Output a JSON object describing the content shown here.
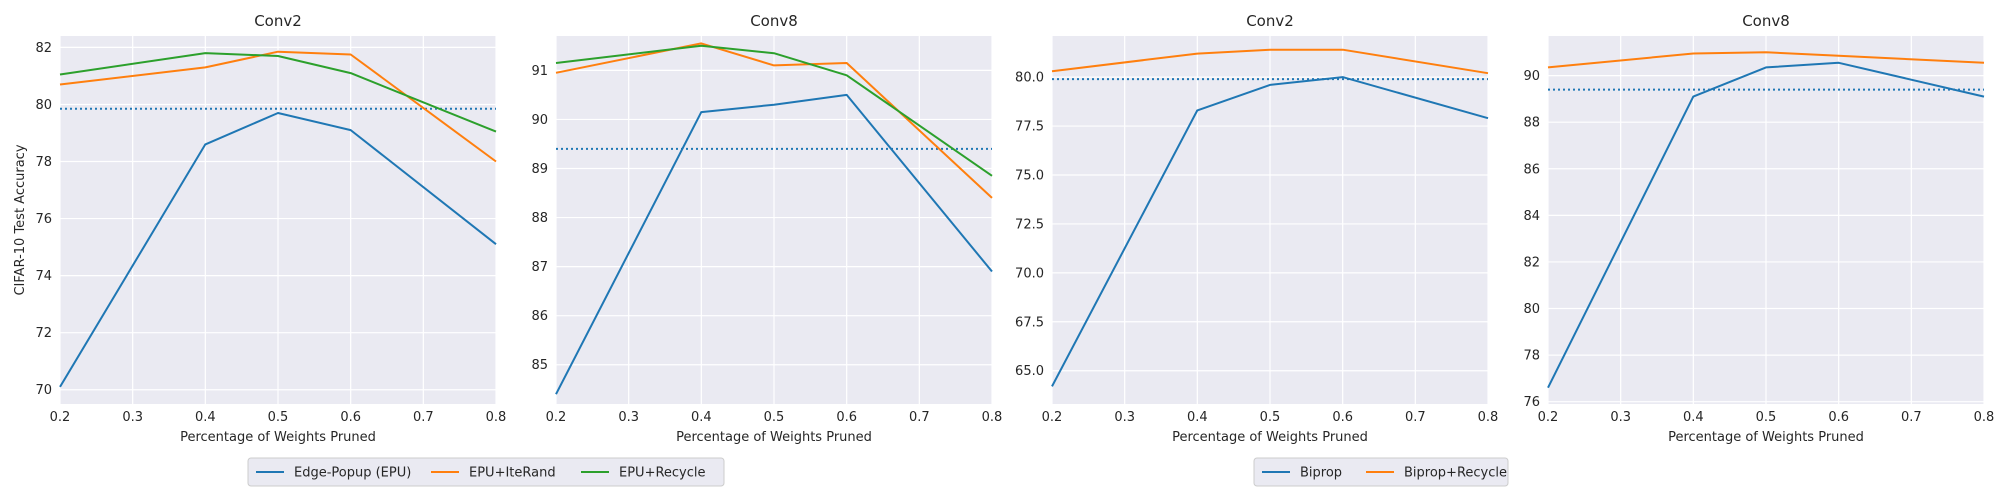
{
  "chart_data": [
    {
      "type": "line",
      "title": "Conv2",
      "xlabel": "Percentage of Weights Pruned",
      "ylabel": "CIFAR-10 Test Accuracy",
      "xlim": [
        0.2,
        0.8
      ],
      "ylim": [
        69.5,
        82.4
      ],
      "xticks": [
        "0.2",
        "0.3",
        "0.4",
        "0.5",
        "0.6",
        "0.7",
        "0.8"
      ],
      "yticks": [
        "70",
        "72",
        "74",
        "76",
        "78",
        "80",
        "82"
      ],
      "x": [
        0.2,
        0.4,
        0.5,
        0.6,
        0.8
      ],
      "series": [
        {
          "name": "Edge-Popup (EPU)",
          "values": [
            70.1,
            78.6,
            79.7,
            79.1,
            75.1
          ]
        },
        {
          "name": "EPU+IteRand",
          "values": [
            80.7,
            81.3,
            81.85,
            81.75,
            78.0
          ]
        },
        {
          "name": "EPU+Recycle",
          "values": [
            81.05,
            81.8,
            81.7,
            81.1,
            79.05
          ]
        }
      ],
      "baseline": 79.85,
      "grid": true
    },
    {
      "type": "line",
      "title": "Conv8",
      "xlabel": "Percentage of Weights Pruned",
      "ylabel": "",
      "xlim": [
        0.2,
        0.8
      ],
      "ylim": [
        84.2,
        91.7
      ],
      "xticks": [
        "0.2",
        "0.3",
        "0.4",
        "0.5",
        "0.6",
        "0.7",
        "0.8"
      ],
      "yticks": [
        "85",
        "86",
        "87",
        "88",
        "89",
        "90",
        "91"
      ],
      "x": [
        0.2,
        0.4,
        0.5,
        0.6,
        0.8
      ],
      "series": [
        {
          "name": "Edge-Popup (EPU)",
          "values": [
            84.4,
            90.15,
            90.3,
            90.5,
            86.9
          ]
        },
        {
          "name": "EPU+IteRand",
          "values": [
            90.95,
            91.55,
            91.1,
            91.15,
            88.4
          ]
        },
        {
          "name": "EPU+Recycle",
          "values": [
            91.15,
            91.5,
            91.35,
            90.9,
            88.85
          ]
        }
      ],
      "baseline": 89.4,
      "grid": true
    },
    {
      "type": "line",
      "title": "Conv2",
      "xlabel": "Percentage of Weights Pruned",
      "ylabel": "",
      "xlim": [
        0.2,
        0.8
      ],
      "ylim": [
        63.3,
        82.1
      ],
      "xticks": [
        "0.2",
        "0.3",
        "0.4",
        "0.5",
        "0.6",
        "0.7",
        "0.8"
      ],
      "yticks": [
        "65.0",
        "67.5",
        "70.0",
        "72.5",
        "75.0",
        "77.5",
        "80.0"
      ],
      "x": [
        0.2,
        0.4,
        0.5,
        0.6,
        0.8
      ],
      "series": [
        {
          "name": "Biprop",
          "values": [
            64.2,
            78.3,
            79.6,
            80.0,
            77.9
          ]
        },
        {
          "name": "Biprop+Recycle",
          "values": [
            80.3,
            81.2,
            81.4,
            81.4,
            80.2
          ]
        }
      ],
      "baseline": 79.9,
      "grid": true
    },
    {
      "type": "line",
      "title": "Conv8",
      "xlabel": "Percentage of Weights Pruned",
      "ylabel": "",
      "xlim": [
        0.2,
        0.8
      ],
      "ylim": [
        75.9,
        91.7
      ],
      "xticks": [
        "0.2",
        "0.3",
        "0.4",
        "0.5",
        "0.6",
        "0.7",
        "0.8"
      ],
      "yticks": [
        "76",
        "78",
        "80",
        "82",
        "84",
        "86",
        "88",
        "90"
      ],
      "x": [
        0.2,
        0.4,
        0.5,
        0.6,
        0.8
      ],
      "series": [
        {
          "name": "Biprop",
          "values": [
            76.6,
            89.1,
            90.35,
            90.55,
            89.1
          ]
        },
        {
          "name": "Biprop+Recycle",
          "values": [
            90.35,
            90.95,
            91.0,
            90.85,
            90.55
          ]
        }
      ],
      "baseline": 89.4,
      "grid": true
    }
  ],
  "legends": [
    {
      "entries": [
        "Edge-Popup (EPU)",
        "EPU+IteRand",
        "EPU+Recycle"
      ]
    },
    {
      "entries": [
        "Biprop",
        "Biprop+Recycle"
      ]
    }
  ],
  "colors": {
    "series": [
      "#1f77b4",
      "#ff7f0e",
      "#2ca02c"
    ],
    "baseline": "#1f77b4",
    "panel_bg": "#eaeaf2",
    "grid": "#ffffff"
  }
}
